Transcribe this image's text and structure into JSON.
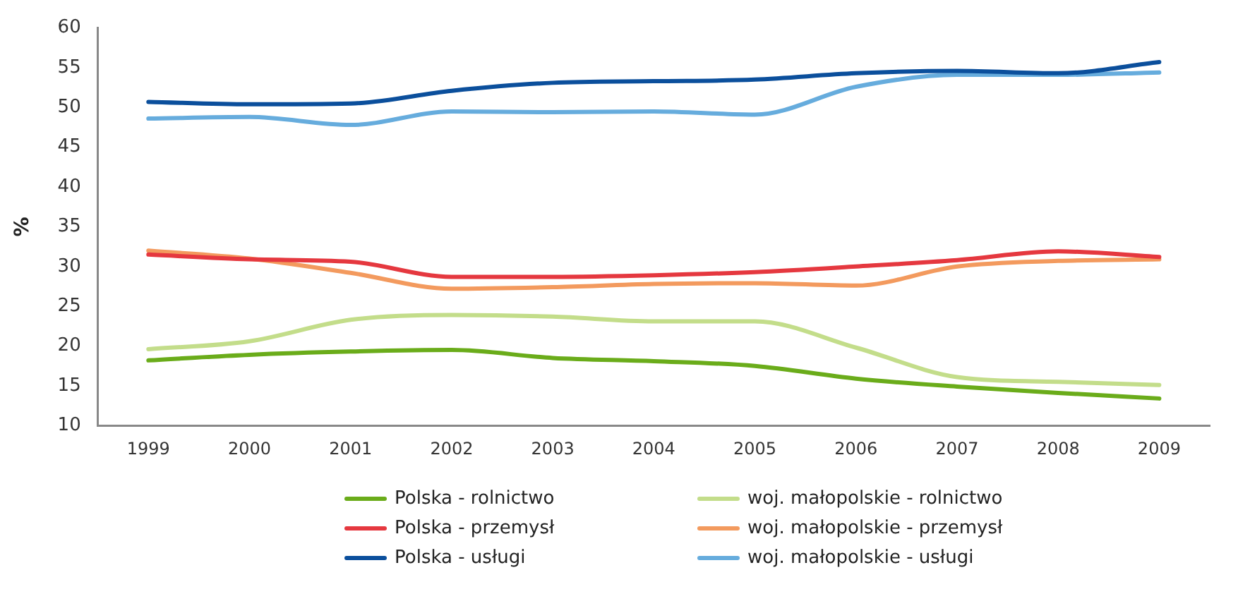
{
  "chart_data": {
    "type": "line",
    "ylabel": "%",
    "categories": [
      "1999",
      "2000",
      "2001",
      "2002",
      "2003",
      "2004",
      "2005",
      "2006",
      "2007",
      "2008",
      "2009"
    ],
    "ylim": [
      10,
      60
    ],
    "yticks": [
      10,
      15,
      20,
      25,
      30,
      35,
      40,
      45,
      50,
      55,
      60
    ],
    "grid": false,
    "legend": "bottom",
    "marker": "none",
    "line_style": "solid",
    "series": [
      {
        "name": "Polska - rolnictwo",
        "color": "#6aac1a",
        "values": [
          18.2,
          18.9,
          19.3,
          19.5,
          18.5,
          18.1,
          17.5,
          15.9,
          14.9,
          14.1,
          13.4
        ]
      },
      {
        "name": "woj. małopolskie - rolnictwo",
        "color": "#c3dd8a",
        "values": [
          19.6,
          20.6,
          23.3,
          23.9,
          23.7,
          23.1,
          23.1,
          19.8,
          16.1,
          15.5,
          15.1
        ]
      },
      {
        "name": "Polska - przemysł",
        "color": "#e5383f",
        "values": [
          31.5,
          30.9,
          30.6,
          28.7,
          28.7,
          28.9,
          29.3,
          30.0,
          30.8,
          31.9,
          31.2
        ]
      },
      {
        "name": "woj. małopolskie - przemysł",
        "color": "#f39a5e",
        "values": [
          32.0,
          31.0,
          29.2,
          27.2,
          27.4,
          27.8,
          27.9,
          27.6,
          30.0,
          30.7,
          30.9
        ]
      },
      {
        "name": "Polska - usługi",
        "color": "#0b4f9c",
        "values": [
          50.7,
          50.4,
          50.5,
          52.1,
          53.1,
          53.3,
          53.5,
          54.3,
          54.6,
          54.3,
          55.7
        ]
      },
      {
        "name": "woj. małopolskie - usługi",
        "color": "#66acdd",
        "values": [
          48.6,
          48.8,
          47.8,
          49.5,
          49.4,
          49.5,
          49.1,
          52.6,
          54.1,
          54.1,
          54.4
        ]
      }
    ]
  }
}
